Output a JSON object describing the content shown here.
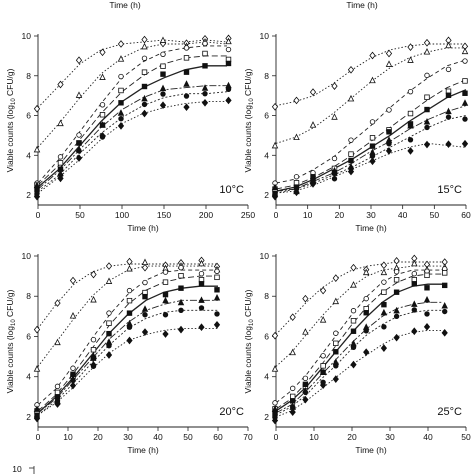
{
  "top_crop_labels": [
    "Time (h)",
    "Time (h)"
  ],
  "bottom_crop_tick": "10",
  "chart_data": [
    {
      "type": "scatter",
      "temperature_label": "10°C",
      "xlabel": "Time (h)",
      "ylabel": "Viable counts (log",
      "ylabel_sub": "10",
      "ylabel_tail": " CFU/g)",
      "xlim": [
        0,
        250
      ],
      "ylim": [
        1.5,
        10
      ],
      "xticks": [
        0,
        50,
        100,
        150,
        200,
        250
      ],
      "yticks": [
        2,
        4,
        6,
        8,
        10
      ],
      "series": [
        {
          "marker": "diamond-open",
          "x": [
            0,
            25,
            50,
            75,
            100,
            125,
            150,
            175,
            200,
            225
          ],
          "y": [
            6.4,
            7.5,
            8.6,
            9.3,
            9.6,
            9.7,
            9.8,
            9.7,
            9.8,
            9.7
          ]
        },
        {
          "marker": "triangle-open",
          "x": [
            0,
            25,
            50,
            75,
            100,
            125,
            150,
            175,
            200,
            225
          ],
          "y": [
            4.4,
            5.6,
            6.9,
            8.1,
            8.9,
            9.4,
            9.6,
            9.6,
            9.7,
            9.6
          ]
        },
        {
          "marker": "circle-open",
          "x": [
            0,
            25,
            50,
            75,
            100,
            125,
            150,
            175,
            200,
            225
          ],
          "y": [
            2.6,
            3.8,
            5.2,
            6.6,
            7.9,
            8.7,
            9.2,
            9.4,
            9.5,
            9.5
          ]
        },
        {
          "marker": "square-open",
          "x": [
            0,
            25,
            50,
            75,
            100,
            125,
            150,
            175,
            200,
            225
          ],
          "y": [
            2.5,
            3.5,
            4.8,
            6.1,
            7.2,
            8.0,
            8.6,
            8.9,
            9.0,
            9.0
          ]
        },
        {
          "marker": "square-filled",
          "x": [
            0,
            25,
            50,
            75,
            100,
            125,
            150,
            175,
            200,
            225
          ],
          "y": [
            2.4,
            3.3,
            4.5,
            5.7,
            6.7,
            7.4,
            7.9,
            8.3,
            8.5,
            8.5
          ]
        },
        {
          "marker": "triangle-filled",
          "x": [
            0,
            25,
            50,
            75,
            100,
            125,
            150,
            175,
            200,
            225
          ],
          "y": [
            2.3,
            3.2,
            4.3,
            5.4,
            6.3,
            6.9,
            7.3,
            7.4,
            7.5,
            7.5
          ]
        },
        {
          "marker": "circle-filled",
          "x": [
            0,
            25,
            50,
            75,
            100,
            125,
            150,
            175,
            200,
            225
          ],
          "y": [
            2.2,
            3.0,
            4.1,
            5.1,
            5.9,
            6.5,
            6.9,
            7.1,
            7.1,
            7.2
          ]
        },
        {
          "marker": "diamond-filled",
          "x": [
            0,
            25,
            50,
            75,
            100,
            125,
            150,
            175,
            200,
            225
          ],
          "y": [
            2.1,
            2.9,
            3.8,
            4.8,
            5.6,
            6.1,
            6.4,
            6.6,
            6.7,
            6.7
          ]
        }
      ]
    },
    {
      "type": "scatter",
      "temperature_label": "15°C",
      "xlabel": "Time (h)",
      "ylabel": "Viable counts (log",
      "ylabel_sub": "10",
      "ylabel_tail": " CFU/g)",
      "xlim": [
        0,
        60
      ],
      "ylim": [
        1.5,
        10
      ],
      "xticks": [
        0,
        10,
        20,
        30,
        40,
        50,
        60
      ],
      "yticks": [
        2,
        4,
        6,
        8,
        10
      ],
      "series": [
        {
          "marker": "diamond-open",
          "x": [
            0,
            6,
            12,
            18,
            24,
            30,
            36,
            42,
            48,
            54,
            60
          ],
          "y": [
            6.5,
            6.7,
            7.0,
            7.6,
            8.3,
            8.9,
            9.3,
            9.5,
            9.6,
            9.6,
            9.6
          ]
        },
        {
          "marker": "triangle-open",
          "x": [
            0,
            6,
            12,
            18,
            24,
            30,
            36,
            42,
            48,
            54,
            60
          ],
          "y": [
            4.6,
            4.9,
            5.4,
            6.1,
            6.9,
            7.7,
            8.4,
            8.9,
            9.2,
            9.4,
            9.4
          ]
        },
        {
          "marker": "circle-open",
          "x": [
            0,
            6,
            12,
            18,
            24,
            30,
            36,
            42,
            48,
            54,
            60
          ],
          "y": [
            2.6,
            2.8,
            3.3,
            3.9,
            4.7,
            5.5,
            6.4,
            7.2,
            7.9,
            8.5,
            8.8
          ]
        },
        {
          "marker": "square-open",
          "x": [
            0,
            6,
            12,
            18,
            24,
            30,
            36,
            42,
            48,
            54,
            60
          ],
          "y": [
            2.3,
            2.5,
            2.9,
            3.4,
            4.0,
            4.7,
            5.4,
            6.1,
            6.8,
            7.4,
            7.8
          ]
        },
        {
          "marker": "square-filled",
          "x": [
            0,
            6,
            12,
            18,
            24,
            30,
            36,
            42,
            48,
            54,
            60
          ],
          "y": [
            2.2,
            2.4,
            2.8,
            3.3,
            3.8,
            4.4,
            5.0,
            5.7,
            6.3,
            6.9,
            7.3
          ]
        },
        {
          "marker": "triangle-filled",
          "x": [
            0,
            6,
            12,
            18,
            24,
            30,
            36,
            42,
            48,
            54,
            60
          ],
          "y": [
            2.2,
            2.3,
            2.7,
            3.1,
            3.6,
            4.2,
            4.7,
            5.3,
            5.8,
            6.2,
            6.5
          ]
        },
        {
          "marker": "circle-filled",
          "x": [
            0,
            6,
            12,
            18,
            24,
            30,
            36,
            42,
            48,
            54,
            60
          ],
          "y": [
            2.1,
            2.3,
            2.6,
            3.0,
            3.4,
            3.9,
            4.4,
            4.9,
            5.4,
            5.8,
            6.0
          ]
        },
        {
          "marker": "diamond-filled",
          "x": [
            0,
            6,
            12,
            18,
            24,
            30,
            36,
            42,
            48,
            54,
            60
          ],
          "y": [
            2.1,
            2.2,
            2.5,
            2.9,
            3.3,
            3.7,
            4.1,
            4.4,
            4.6,
            4.5,
            4.4
          ]
        }
      ]
    },
    {
      "type": "scatter",
      "temperature_label": "20°C",
      "xlabel": "Time (h)",
      "ylabel": "Viable counts (log",
      "ylabel_sub": "10",
      "ylabel_tail": " CFU/g)",
      "xlim": [
        0,
        70
      ],
      "ylim": [
        1.5,
        10
      ],
      "xticks": [
        0,
        10,
        20,
        30,
        40,
        50,
        60,
        70
      ],
      "yticks": [
        2,
        4,
        6,
        8,
        10
      ],
      "series": [
        {
          "marker": "diamond-open",
          "x": [
            0,
            6,
            12,
            18,
            24,
            30,
            36,
            42,
            48,
            54,
            60
          ],
          "y": [
            6.4,
            7.6,
            8.6,
            9.2,
            9.5,
            9.6,
            9.6,
            9.6,
            9.6,
            9.6,
            9.6
          ]
        },
        {
          "marker": "triangle-open",
          "x": [
            0,
            6,
            12,
            18,
            24,
            30,
            36,
            42,
            48,
            54,
            60
          ],
          "y": [
            4.5,
            5.7,
            6.9,
            8.0,
            8.8,
            9.3,
            9.5,
            9.5,
            9.5,
            9.5,
            9.5
          ]
        },
        {
          "marker": "circle-open",
          "x": [
            0,
            6,
            12,
            18,
            24,
            30,
            36,
            42,
            48,
            54,
            60
          ],
          "y": [
            2.6,
            3.4,
            4.6,
            5.9,
            7.1,
            8.1,
            8.8,
            9.2,
            9.3,
            9.3,
            9.3
          ]
        },
        {
          "marker": "square-open",
          "x": [
            0,
            6,
            12,
            18,
            24,
            30,
            36,
            42,
            48,
            54,
            60
          ],
          "y": [
            2.3,
            3.1,
            4.2,
            5.4,
            6.6,
            7.6,
            8.3,
            8.7,
            8.9,
            9.0,
            9.0
          ]
        },
        {
          "marker": "square-filled",
          "x": [
            0,
            6,
            12,
            18,
            24,
            30,
            36,
            42,
            48,
            54,
            60
          ],
          "y": [
            2.2,
            3.0,
            4.0,
            5.1,
            6.2,
            7.1,
            7.8,
            8.2,
            8.4,
            8.5,
            8.5
          ]
        },
        {
          "marker": "triangle-filled",
          "x": [
            0,
            6,
            12,
            18,
            24,
            30,
            36,
            42,
            48,
            54,
            60
          ],
          "y": [
            2.2,
            2.9,
            3.9,
            4.9,
            5.9,
            6.7,
            7.3,
            7.6,
            7.8,
            7.8,
            7.8
          ]
        },
        {
          "marker": "circle-filled",
          "x": [
            0,
            6,
            12,
            18,
            24,
            30,
            36,
            42,
            48,
            54,
            60
          ],
          "y": [
            2.1,
            2.8,
            3.7,
            4.7,
            5.6,
            6.4,
            6.9,
            7.2,
            7.3,
            7.3,
            7.3
          ]
        },
        {
          "marker": "diamond-filled",
          "x": [
            0,
            6,
            12,
            18,
            24,
            30,
            36,
            42,
            48,
            54,
            60
          ],
          "y": [
            2.1,
            2.7,
            3.5,
            4.4,
            5.2,
            5.8,
            6.1,
            6.3,
            6.4,
            6.4,
            6.4
          ]
        }
      ]
    },
    {
      "type": "scatter",
      "temperature_label": "25°C",
      "xlabel": "Time (h)",
      "ylabel": "Viable counts (log",
      "ylabel_sub": "10",
      "ylabel_tail": " CFU/g)",
      "xlim": [
        0,
        50
      ],
      "ylim": [
        1.5,
        10
      ],
      "xticks": [
        0,
        10,
        20,
        30,
        40,
        50
      ],
      "yticks": [
        2,
        4,
        6,
        8,
        10
      ],
      "series": [
        {
          "marker": "diamond-open",
          "x": [
            0,
            4,
            8,
            12,
            16,
            20,
            24,
            28,
            32,
            36,
            40,
            44
          ],
          "y": [
            6.1,
            6.9,
            7.7,
            8.4,
            8.9,
            9.3,
            9.5,
            9.6,
            9.7,
            9.7,
            9.7,
            9.7
          ]
        },
        {
          "marker": "triangle-open",
          "x": [
            0,
            4,
            8,
            12,
            16,
            20,
            24,
            28,
            32,
            36,
            40,
            44
          ],
          "y": [
            4.5,
            5.2,
            6.1,
            7.0,
            7.8,
            8.5,
            9.0,
            9.3,
            9.4,
            9.5,
            9.5,
            9.5
          ]
        },
        {
          "marker": "circle-open",
          "x": [
            0,
            4,
            8,
            12,
            16,
            20,
            24,
            28,
            32,
            36,
            40,
            44
          ],
          "y": [
            2.7,
            3.3,
            4.1,
            5.1,
            6.1,
            7.1,
            8.0,
            8.7,
            9.1,
            9.3,
            9.3,
            9.3
          ]
        },
        {
          "marker": "square-open",
          "x": [
            0,
            4,
            8,
            12,
            16,
            20,
            24,
            28,
            32,
            36,
            40,
            44
          ],
          "y": [
            2.4,
            2.9,
            3.7,
            4.6,
            5.6,
            6.6,
            7.5,
            8.2,
            8.7,
            9.0,
            9.1,
            9.1
          ]
        },
        {
          "marker": "square-filled",
          "x": [
            0,
            4,
            8,
            12,
            16,
            20,
            24,
            28,
            32,
            36,
            40,
            44
          ],
          "y": [
            2.3,
            2.8,
            3.5,
            4.4,
            5.3,
            6.2,
            7.0,
            7.7,
            8.2,
            8.5,
            8.6,
            8.6
          ]
        },
        {
          "marker": "triangle-filled",
          "x": [
            0,
            4,
            8,
            12,
            16,
            20,
            24,
            28,
            32,
            36,
            40,
            44
          ],
          "y": [
            2.2,
            2.6,
            3.3,
            4.1,
            4.9,
            5.7,
            6.4,
            7.0,
            7.4,
            7.6,
            7.7,
            7.7
          ]
        },
        {
          "marker": "circle-filled",
          "x": [
            0,
            4,
            8,
            12,
            16,
            20,
            24,
            28,
            32,
            36,
            40,
            44
          ],
          "y": [
            2.1,
            2.5,
            3.1,
            3.9,
            4.6,
            5.4,
            6.1,
            6.6,
            7.0,
            7.2,
            7.3,
            7.3
          ]
        },
        {
          "marker": "diamond-filled",
          "x": [
            0,
            4,
            8,
            12,
            16,
            20,
            24,
            28,
            32,
            36,
            40,
            44
          ],
          "y": [
            2.0,
            2.3,
            2.8,
            3.4,
            4.0,
            4.6,
            5.1,
            5.6,
            6.0,
            6.2,
            6.3,
            6.3
          ]
        }
      ]
    }
  ]
}
